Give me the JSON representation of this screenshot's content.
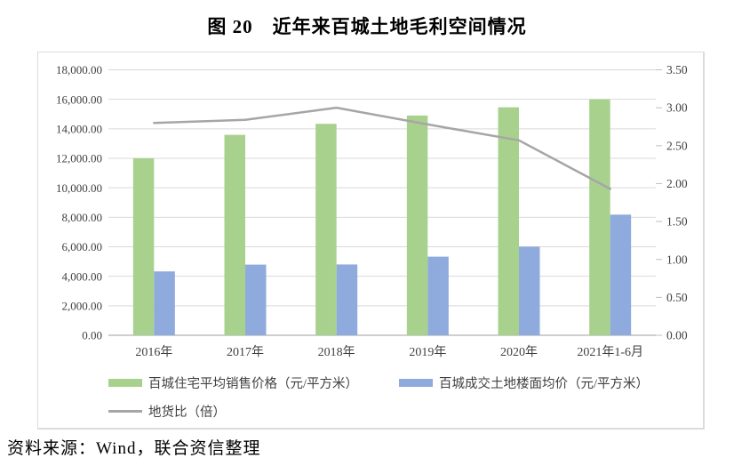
{
  "page": {
    "title": "图 20　近年来百城土地毛利空间情况",
    "source_note": "资料来源：Wind，联合资信整理"
  },
  "chart_data": {
    "type": "bar",
    "subtype": "clustered-bar-with-secondary-line",
    "title": "图 20　近年来百城土地毛利空间情况",
    "categories": [
      "2016年",
      "2017年",
      "2018年",
      "2019年",
      "2020年",
      "2021年1-6月"
    ],
    "series": [
      {
        "name": "百城住宅平均销售价格（元/平方米）",
        "type": "bar",
        "axis": "left",
        "color": "#A9D18E",
        "values": [
          12000,
          13590,
          14340,
          14900,
          15460,
          16000
        ]
      },
      {
        "name": "百城成交土地楼面均价（元/平方米）",
        "type": "bar",
        "axis": "left",
        "color": "#8FAADC",
        "values": [
          4330,
          4790,
          4800,
          5330,
          6010,
          8180
        ]
      },
      {
        "name": "地货比（倍）",
        "type": "line",
        "axis": "right",
        "color": "#A6A6A6",
        "values": [
          2.8,
          2.84,
          3.0,
          2.78,
          2.57,
          1.93
        ]
      }
    ],
    "left_axis": {
      "min": 0,
      "max": 18000,
      "step": 2000,
      "tick_labels": [
        "18,000.00",
        "16,000.00",
        "14,000.00",
        "12,000.00",
        "10,000.00",
        "8,000.00",
        "6,000.00",
        "4,000.00",
        "2,000.00",
        "0.00"
      ]
    },
    "right_axis": {
      "min": 0,
      "max": 3.5,
      "step": 0.5,
      "tick_labels": [
        "3.50",
        "3.00",
        "2.50",
        "2.00",
        "1.50",
        "1.00",
        "0.50",
        "0.00"
      ]
    },
    "grid": true,
    "legend_position": "bottom-left",
    "colors": {
      "grid": "#D9D9D9",
      "axis_line": "#BFBFBF",
      "axis_text": "#404040"
    }
  }
}
